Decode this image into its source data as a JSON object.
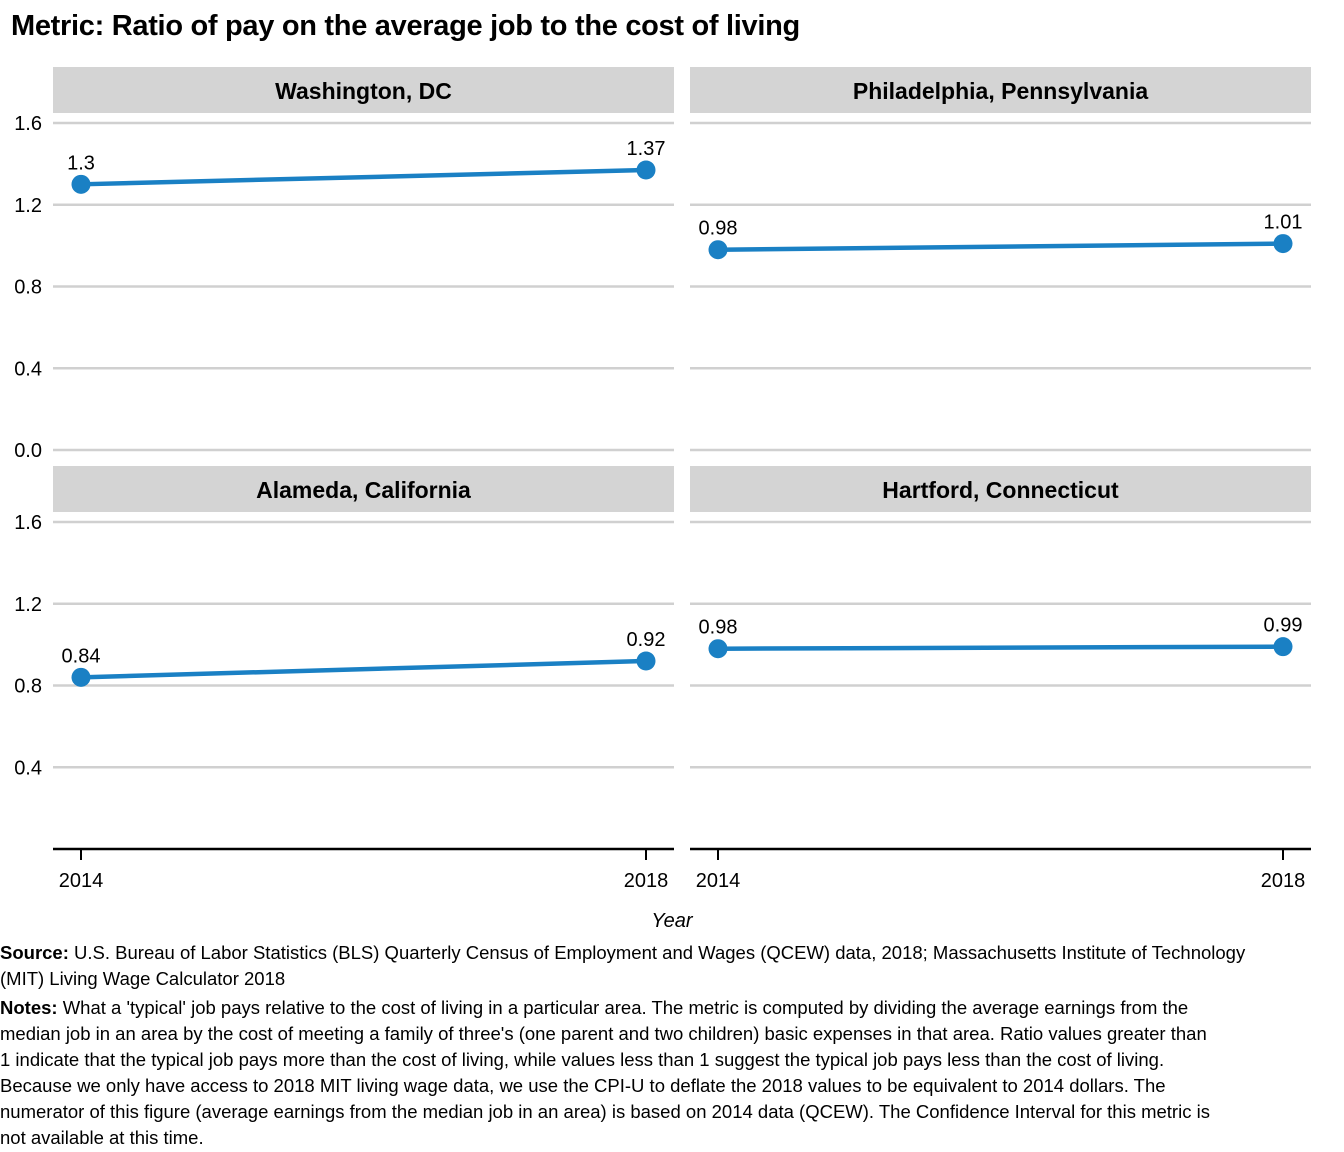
{
  "title": "Metric: Ratio of pay on the average job to the cost of living",
  "chart_data": {
    "type": "line",
    "facets": [
      {
        "title": "Washington, DC",
        "x": [
          "2014",
          "2018"
        ],
        "values": [
          1.3,
          1.37
        ],
        "labels": [
          "1.3",
          "1.37"
        ]
      },
      {
        "title": "Philadelphia, Pennsylvania",
        "x": [
          "2014",
          "2018"
        ],
        "values": [
          0.98,
          1.01
        ],
        "labels": [
          "0.98",
          "1.01"
        ]
      },
      {
        "title": "Alameda, California",
        "x": [
          "2014",
          "2018"
        ],
        "values": [
          0.84,
          0.92
        ],
        "labels": [
          "0.84",
          "0.92"
        ]
      },
      {
        "title": "Hartford, Connecticut",
        "x": [
          "2014",
          "2018"
        ],
        "values": [
          0.98,
          0.99
        ],
        "labels": [
          "0.98",
          "0.99"
        ]
      }
    ],
    "xlabel": "Year",
    "ylabel": "",
    "ylim": [
      0,
      1.7
    ],
    "yticks": [
      0.0,
      0.4,
      0.8,
      1.2,
      1.6
    ],
    "ytick_labels": [
      "0.0",
      "0.4",
      "0.8",
      "1.2",
      "1.6"
    ],
    "grid": true,
    "color": "#1a80c4"
  },
  "source": {
    "label": "Source:",
    "text": "U.S. Bureau of Labor Statistics (BLS) Quarterly Census of Employment and Wages (QCEW) data, 2018; Massachusetts Institute of Technology (MIT) Living Wage Calculator 2018"
  },
  "notes": {
    "label": "Notes:",
    "text": "What a 'typical' job pays relative to the cost of living in a particular area. The metric is computed by dividing the average earnings from the median job in an area by the cost of meeting a family of three's (one parent and two children) basic expenses in that area. Ratio values greater than 1 indicate that the typical job pays more than the cost of living, while values less than 1 suggest the typical job pays less than the cost of living. Because we only have access to 2018 MIT living wage data, we use the CPI-U to deflate the 2018 values to be equivalent to 2014 dollars. The numerator of this figure (average earnings from the median job in an area) is based on 2014 data (QCEW). The Confidence Interval for this metric is not available at this time."
  }
}
